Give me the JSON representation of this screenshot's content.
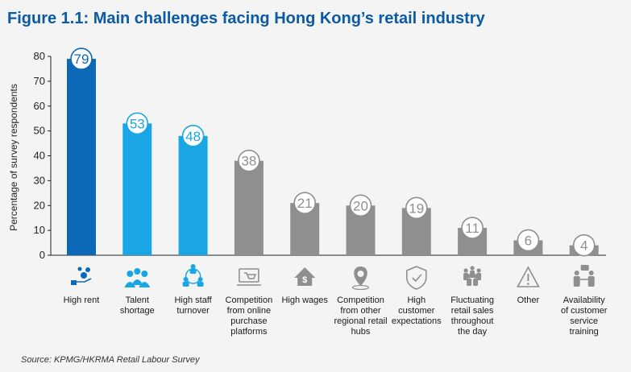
{
  "title": "Figure 1.1: Main challenges facing Hong Kong’s retail industry",
  "source": "Source: KPMG/HKRMA Retail Labour Survey",
  "colors": {
    "dark_blue": "#0b69b7",
    "light_blue": "#1aa6e4",
    "grey": "#8f8f91",
    "title": "#0a5aa5"
  },
  "chart_data": {
    "type": "bar",
    "title": "Figure 1.1: Main challenges facing Hong Kong’s retail industry",
    "xlabel": "",
    "ylabel": "Percentage of survey respondents",
    "ylim": [
      0,
      80
    ],
    "yticks": [
      0,
      10,
      20,
      30,
      40,
      50,
      60,
      70,
      80
    ],
    "categories": [
      "High rent",
      "Talent shortage",
      "High staff turnover",
      "Competition from online purchase platforms",
      "High wages",
      "Competition from other regional retail hubs",
      "High customer expectations",
      "Fluctuating retail sales throughout the day",
      "Other",
      "Availability of customer service training"
    ],
    "category_lines": [
      [
        "High rent"
      ],
      [
        "Talent",
        "shortage"
      ],
      [
        "High staff",
        "turnover"
      ],
      [
        "Competition",
        "from online",
        "purchase",
        "platforms"
      ],
      [
        "High wages"
      ],
      [
        "Competition",
        "from other",
        "regional retail",
        "hubs"
      ],
      [
        "High",
        "customer",
        "expectations"
      ],
      [
        "Fluctuating",
        "retail sales",
        "throughout",
        "the day"
      ],
      [
        "Other"
      ],
      [
        "Availability",
        "of customer",
        "service",
        "training"
      ]
    ],
    "values": [
      79,
      53,
      48,
      38,
      21,
      20,
      19,
      11,
      6,
      4
    ],
    "bar_colors": [
      "dark_blue",
      "light_blue",
      "light_blue",
      "grey",
      "grey",
      "grey",
      "grey",
      "grey",
      "grey",
      "grey"
    ],
    "icons": [
      "money-hand-icon",
      "people-group-icon",
      "staff-turnover-icon",
      "online-cart-icon",
      "wages-house-icon",
      "location-pin-icon",
      "shield-check-icon",
      "crowd-icon",
      "warning-icon",
      "handshake-chat-icon"
    ],
    "grid": false
  }
}
